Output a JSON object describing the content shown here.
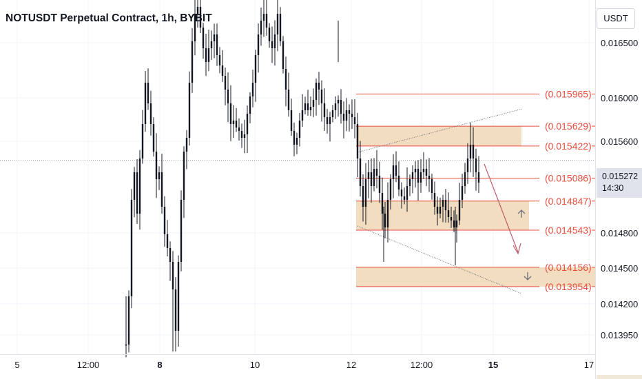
{
  "title": "NOTUSDT Perpetual Contract, 1h, BYBIT",
  "unit_button": "USDT",
  "last_price": {
    "value": "0.015272",
    "countdown": "14:30"
  },
  "colors": {
    "level_line": "#e74c3c",
    "zone_fill": "#f0d5b0",
    "candle": "#131722",
    "arrow": "#c05a66",
    "grid": "#f0f3fa",
    "trendline": "#6b6f7a"
  },
  "chart_data": {
    "type": "candlestick",
    "x_ticks": [
      "5",
      "12:00",
      "8",
      "10",
      "12",
      "12:00",
      "15",
      "17"
    ],
    "y_ticks": [
      "0.016500",
      "0.016000",
      "0.015600",
      "0.014800",
      "0.014500",
      "0.014200",
      "0.013950"
    ],
    "y_range": [
      0.01375,
      0.01685
    ],
    "levels": [
      {
        "label": "(0.015965)",
        "price": 0.015965
      },
      {
        "label": "(0.015629)",
        "price": 0.015629
      },
      {
        "label": "(0.015422)",
        "price": 0.015422
      },
      {
        "label": "(0.015086)",
        "price": 0.015086
      },
      {
        "label": "(0.014847)",
        "price": 0.014847
      },
      {
        "label": "(0.014543)",
        "price": 0.014543
      },
      {
        "label": "(0.014156)",
        "price": 0.014156
      },
      {
        "label": "(0.013954)",
        "price": 0.013954
      }
    ],
    "zones": [
      {
        "top": 0.015629,
        "bottom": 0.015422
      },
      {
        "top": 0.014847,
        "bottom": 0.014543
      },
      {
        "top": 0.014156,
        "bottom": 0.013954
      }
    ],
    "last_price": 0.015272,
    "annotations": [
      "up-arrow",
      "down-arrow",
      "projected-path-arrow",
      "ascending-trendline",
      "descending-trendline"
    ]
  }
}
